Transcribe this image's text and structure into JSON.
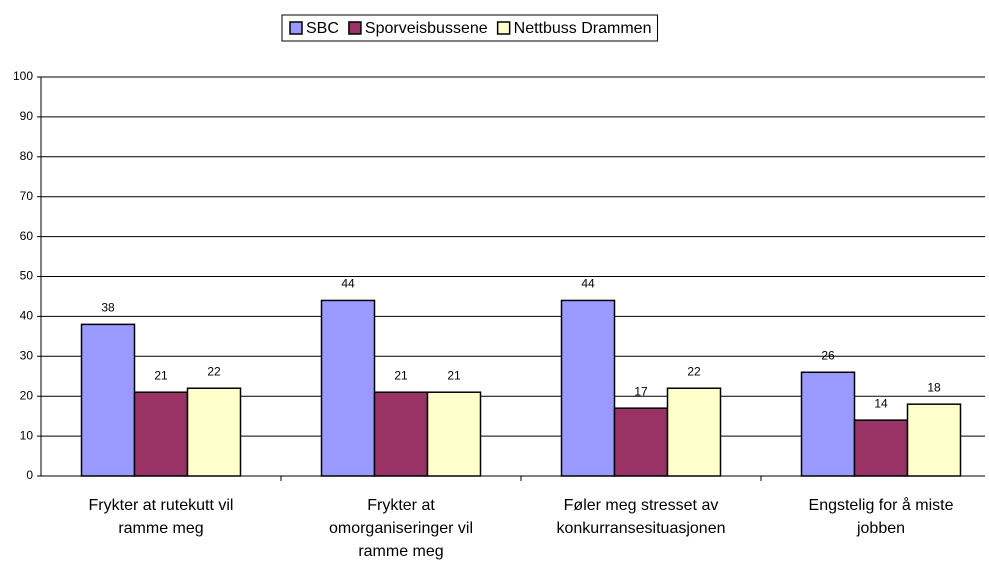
{
  "chart_data": {
    "type": "bar",
    "categories": [
      [
        "Frykter at rutekutt vil",
        "ramme meg"
      ],
      [
        "Frykter at",
        "omorganiseringer vil",
        "ramme meg"
      ],
      [
        "Føler meg stresset av",
        "konkurransesituasjonen"
      ],
      [
        "Engstelig for å miste",
        "jobben"
      ]
    ],
    "series": [
      {
        "name": "SBC",
        "color": "#9999ff",
        "values": [
          38,
          44,
          44,
          26
        ]
      },
      {
        "name": "Sporveisbussene",
        "color": "#993366",
        "values": [
          21,
          21,
          17,
          14
        ]
      },
      {
        "name": "Nettbuss Drammen",
        "color": "#ffffcc",
        "values": [
          22,
          21,
          22,
          18
        ]
      }
    ],
    "ylim": [
      0,
      100
    ],
    "yticks": [
      0,
      10,
      20,
      30,
      40,
      50,
      60,
      70,
      80,
      90,
      100
    ],
    "grid": true,
    "legend": "top"
  }
}
